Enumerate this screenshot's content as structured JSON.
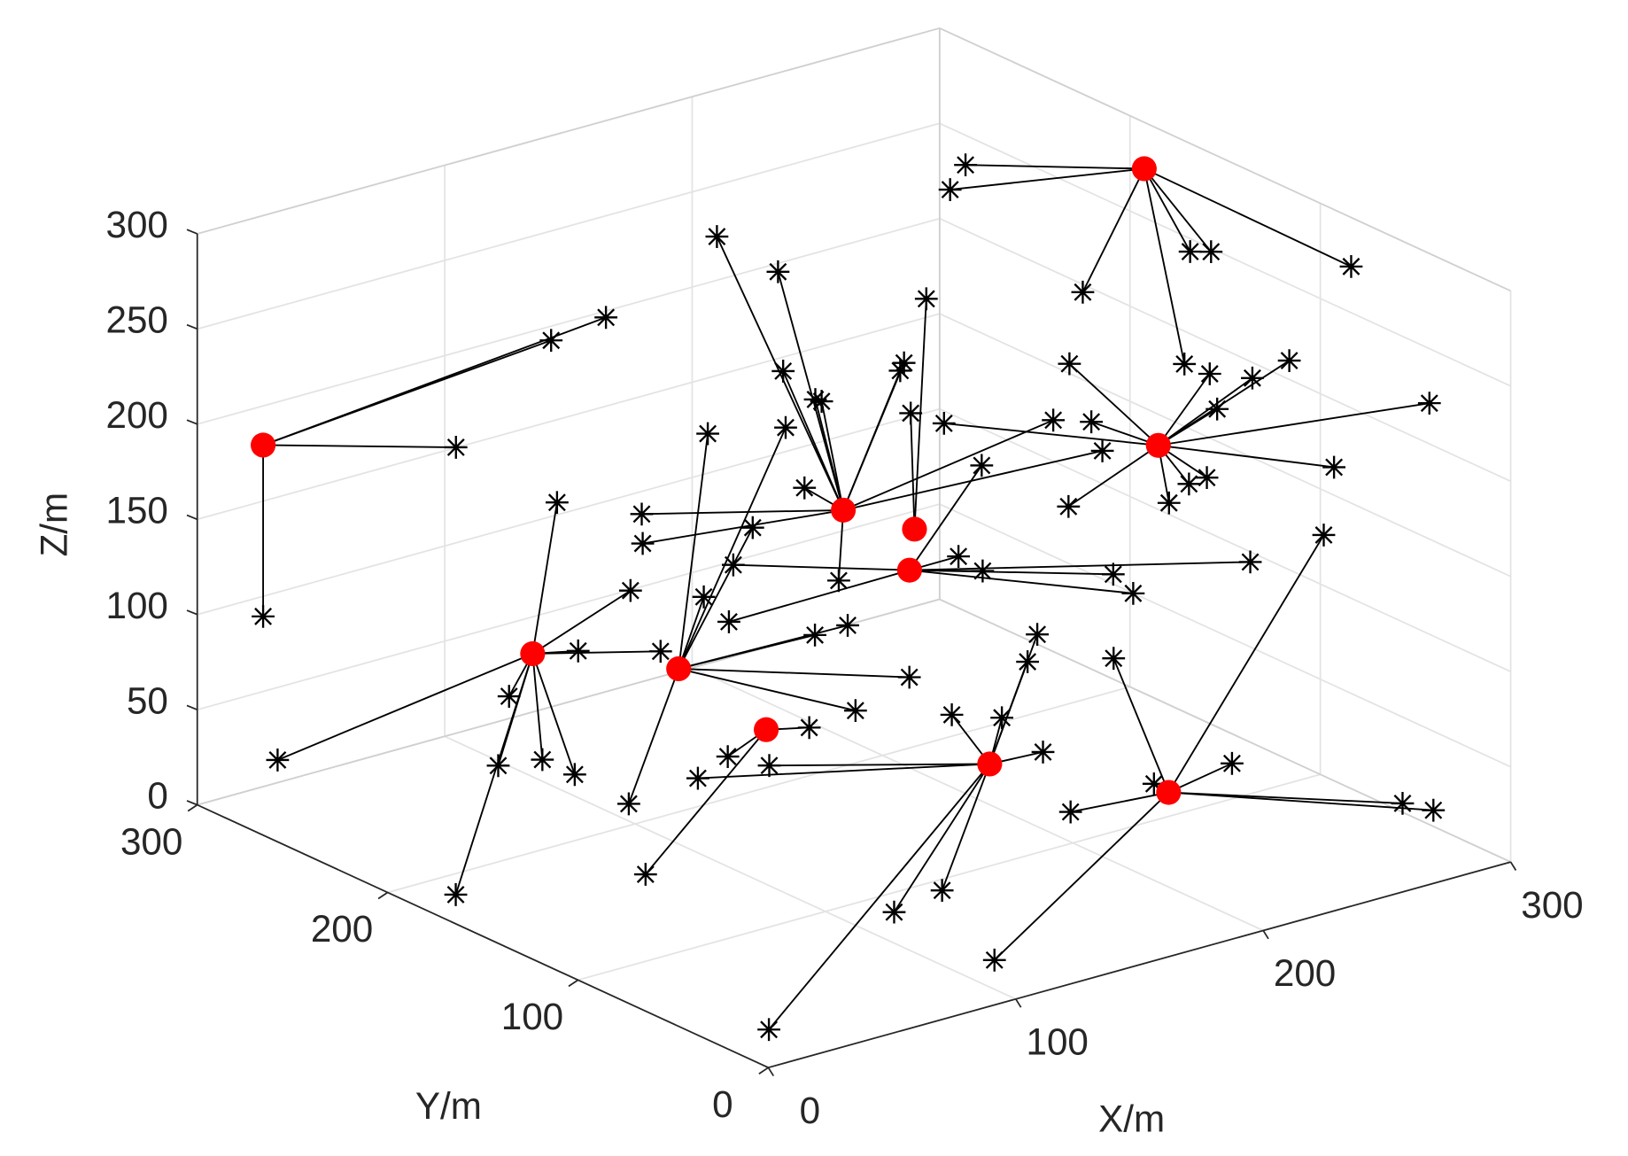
{
  "chart_data": {
    "type": "scatter3d",
    "xlabel": "X/m",
    "ylabel": "Y/m",
    "zlabel": "Z/m",
    "xlim": [
      0,
      300
    ],
    "ylim": [
      0,
      300
    ],
    "zlim": [
      0,
      300
    ],
    "xticks": [
      0,
      100,
      200,
      300
    ],
    "yticks": [
      0,
      100,
      200,
      300
    ],
    "zticks": [
      0,
      50,
      100,
      150,
      200,
      250,
      300
    ],
    "grid": true,
    "heads": {
      "color": "#ff0000",
      "x": [
        2,
        285,
        168,
        283,
        186,
        204,
        84,
        123,
        143,
        191,
        231
      ],
      "y": [
        268,
        173,
        179,
        163,
        165,
        191,
        233,
        207,
        187,
        132,
        90
      ],
      "z": [
        203,
        290,
        150,
        150,
        140,
        100,
        80,
        70,
        40,
        30,
        20
      ]
    },
    "nodes": {
      "color": "#000000",
      "x": [
        63,
        83,
        99,
        2,
        242,
        235,
        254,
        272,
        272,
        294,
        282,
        283,
        281,
        279,
        276,
        291,
        284,
        288,
        280,
        275,
        279,
        279,
        274,
        241,
        140,
        157,
        156,
        159,
        170,
        191,
        191,
        160,
        115,
        120,
        170,
        239,
        245,
        190,
        186,
        203,
        217,
        222,
        274,
        279,
        284,
        152,
        151,
        100,
        112,
        97,
        128,
        86,
        91,
        91,
        87,
        16,
        24,
        134,
        157,
        146,
        127,
        155,
        179,
        187,
        176,
        99,
        155,
        129,
        75,
        145,
        120,
        198,
        209,
        211,
        141,
        117,
        21,
        201,
        194,
        228,
        242,
        232,
        206,
        284,
        288,
        286,
        116
      ],
      "y": [
        246,
        222,
        214,
        268,
        211,
        210,
        165,
        132,
        121,
        76,
        148,
        136,
        111,
        89,
        123,
        31,
        72,
        144,
        143,
        147,
        205,
        193,
        198,
        221,
        209,
        199,
        195,
        182,
        193,
        177,
        179,
        189,
        216,
        222,
        184,
        161,
        143,
        164,
        167,
        164,
        170,
        176,
        175,
        171,
        116,
        216,
        217,
        241,
        218,
        226,
        223,
        248,
        237,
        220,
        255,
        185,
        289,
        206,
        195,
        198,
        199,
        177,
        191,
        169,
        183,
        202,
        180,
        189,
        162,
        188,
        193,
        161,
        149,
        130,
        92,
        86,
        27,
        120,
        116,
        115,
        71,
        99,
        109,
        36,
        25,
        80,
        32
      ],
      "z": [
        190,
        250,
        260,
        113,
        290,
        280,
        240,
        270,
        275,
        280,
        200,
        200,
        210,
        230,
        190,
        230,
        180,
        140,
        140,
        130,
        100,
        150,
        180,
        150,
        290,
        270,
        220,
        210,
        200,
        220,
        215,
        160,
        150,
        130,
        110,
        180,
        170,
        260,
        200,
        120,
        160,
        100,
        80,
        70,
        110,
        110,
        80,
        150,
        110,
        80,
        70,
        50,
        20,
        20,
        10,
        0,
        20,
        190,
        190,
        140,
        110,
        90,
        80,
        60,
        40,
        10,
        40,
        30,
        0,
        20,
        20,
        40,
        40,
        30,
        0,
        0,
        0,
        100,
        90,
        80,
        40,
        20,
        10,
        20,
        20,
        140,
        0
      ],
      "head": [
        0,
        0,
        0,
        0,
        1,
        1,
        1,
        1,
        1,
        1,
        1,
        3,
        3,
        3,
        3,
        3,
        3,
        3,
        3,
        3,
        3,
        3,
        3,
        3,
        2,
        2,
        2,
        2,
        2,
        2,
        2,
        2,
        2,
        2,
        2,
        2,
        2,
        4,
        4,
        5,
        5,
        5,
        5,
        5,
        5,
        5,
        5,
        6,
        6,
        6,
        6,
        6,
        6,
        6,
        6,
        6,
        6,
        7,
        7,
        7,
        7,
        7,
        7,
        7,
        7,
        7,
        8,
        8,
        8,
        9,
        9,
        9,
        9,
        9,
        9,
        9,
        9,
        9,
        9,
        10,
        10,
        10,
        10,
        10,
        10,
        10,
        10
      ]
    }
  }
}
